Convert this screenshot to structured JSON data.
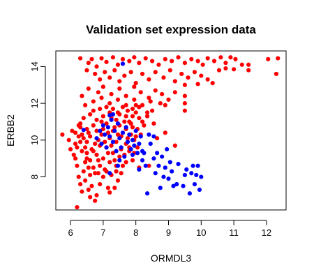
{
  "chart_data": {
    "type": "scatter",
    "title": "Validation set expression data",
    "xlabel": "ORMDL3",
    "ylabel": "ERBB2",
    "xlim": [
      5.55,
      12.6
    ],
    "ylim": [
      6.2,
      14.85
    ],
    "xticks": [
      6,
      7,
      8,
      9,
      10,
      11,
      12
    ],
    "yticks": [
      8,
      10,
      12,
      14
    ],
    "grid": false,
    "legend": "none",
    "series": [
      {
        "color": "#ff0000",
        "points": [
          [
            6.3,
            14.45
          ],
          [
            6.55,
            14.2
          ],
          [
            6.65,
            14.4
          ],
          [
            6.8,
            14.0
          ],
          [
            6.95,
            14.45
          ],
          [
            7.1,
            14.25
          ],
          [
            7.3,
            14.5
          ],
          [
            7.45,
            14.1
          ],
          [
            7.6,
            14.4
          ],
          [
            7.8,
            14.3
          ],
          [
            7.95,
            14.5
          ],
          [
            8.1,
            14.2
          ],
          [
            8.3,
            14.45
          ],
          [
            8.5,
            14.3
          ],
          [
            8.7,
            14.1
          ],
          [
            8.9,
            14.4
          ],
          [
            9.1,
            14.3
          ],
          [
            9.3,
            14.5
          ],
          [
            9.5,
            14.2
          ],
          [
            9.7,
            14.4
          ],
          [
            9.9,
            14.3
          ],
          [
            10.05,
            14.1
          ],
          [
            10.2,
            14.45
          ],
          [
            10.4,
            14.3
          ],
          [
            10.6,
            14.5
          ],
          [
            10.75,
            14.2
          ],
          [
            10.9,
            14.5
          ],
          [
            11.05,
            14.4
          ],
          [
            11.25,
            14.1
          ],
          [
            11.45,
            14.1
          ],
          [
            11.45,
            13.8
          ],
          [
            12.05,
            14.4
          ],
          [
            12.35,
            14.45
          ],
          [
            12.3,
            13.6
          ],
          [
            6.5,
            13.8
          ],
          [
            6.75,
            13.6
          ],
          [
            6.9,
            13.3
          ],
          [
            7.05,
            13.7
          ],
          [
            7.2,
            13.4
          ],
          [
            7.35,
            13.8
          ],
          [
            7.5,
            13.2
          ],
          [
            7.65,
            13.5
          ],
          [
            7.85,
            13.7
          ],
          [
            8.0,
            13.1
          ],
          [
            8.2,
            13.6
          ],
          [
            8.4,
            13.3
          ],
          [
            8.6,
            13.7
          ],
          [
            8.85,
            13.4
          ],
          [
            9.05,
            13.8
          ],
          [
            9.2,
            13.2
          ],
          [
            9.4,
            13.6
          ],
          [
            9.6,
            13.4
          ],
          [
            9.8,
            13.7
          ],
          [
            10.0,
            13.5
          ],
          [
            10.2,
            13.3
          ],
          [
            10.35,
            13.1
          ],
          [
            10.55,
            13.8
          ],
          [
            10.75,
            13.9
          ],
          [
            11.0,
            13.85
          ],
          [
            9.5,
            13.0
          ],
          [
            9.9,
            13.05
          ],
          [
            6.55,
            12.8
          ],
          [
            6.85,
            12.6
          ],
          [
            7.0,
            12.9
          ],
          [
            7.25,
            12.5
          ],
          [
            7.5,
            12.8
          ],
          [
            7.7,
            12.4
          ],
          [
            7.95,
            12.9
          ],
          [
            8.15,
            12.6
          ],
          [
            8.4,
            12.3
          ],
          [
            8.6,
            12.7
          ],
          [
            8.8,
            12.5
          ],
          [
            9.0,
            12.2
          ],
          [
            9.2,
            12.6
          ],
          [
            9.5,
            12.4
          ],
          [
            9.5,
            12.0
          ],
          [
            9.5,
            11.6
          ],
          [
            8.75,
            12.0
          ],
          [
            8.9,
            11.9
          ],
          [
            6.35,
            12.4
          ],
          [
            6.45,
            11.9
          ],
          [
            6.7,
            12.1
          ],
          [
            6.95,
            12.3
          ],
          [
            7.2,
            12.0
          ],
          [
            7.45,
            12.2
          ],
          [
            7.7,
            11.9
          ],
          [
            7.95,
            12.2
          ],
          [
            8.2,
            11.9
          ],
          [
            8.45,
            12.1
          ],
          [
            5.75,
            10.3
          ],
          [
            5.95,
            10.0
          ],
          [
            6.0,
            9.5
          ],
          [
            6.05,
            10.5
          ],
          [
            6.15,
            9.8
          ],
          [
            6.1,
            9.2
          ],
          [
            6.2,
            8.6
          ],
          [
            6.25,
            8.0
          ],
          [
            6.3,
            7.6
          ],
          [
            6.35,
            7.2
          ],
          [
            6.2,
            6.35
          ],
          [
            6.6,
            6.9
          ],
          [
            6.8,
            7.0
          ],
          [
            6.75,
            6.7
          ],
          [
            7.2,
            7.15
          ],
          [
            7.15,
            7.4
          ],
          [
            6.55,
            7.3
          ],
          [
            6.45,
            7.8
          ],
          [
            6.65,
            7.5
          ],
          [
            6.9,
            7.6
          ],
          [
            6.15,
            9.0
          ],
          [
            6.2,
            9.6
          ],
          [
            6.25,
            10.2
          ],
          [
            6.3,
            10.7
          ],
          [
            6.35,
            9.4
          ],
          [
            6.4,
            8.3
          ],
          [
            6.45,
            8.8
          ],
          [
            6.5,
            9.9
          ],
          [
            6.55,
            10.4
          ],
          [
            6.6,
            8.9
          ],
          [
            6.65,
            9.5
          ],
          [
            6.7,
            10.8
          ],
          [
            6.75,
            8.2
          ],
          [
            6.8,
            9.2
          ],
          [
            6.85,
            10.0
          ],
          [
            6.9,
            8.6
          ],
          [
            6.95,
            11.0
          ],
          [
            7.0,
            9.0
          ],
          [
            7.05,
            8.4
          ],
          [
            7.1,
            9.6
          ],
          [
            7.15,
            10.4
          ],
          [
            7.2,
            8.8
          ],
          [
            7.25,
            11.2
          ],
          [
            7.3,
            9.3
          ],
          [
            7.35,
            10.7
          ],
          [
            7.4,
            8.3
          ],
          [
            7.45,
            11.5
          ],
          [
            7.5,
            9.1
          ],
          [
            7.55,
            10.2
          ],
          [
            7.6,
            8.6
          ],
          [
            7.65,
            11.0
          ],
          [
            7.7,
            9.8
          ],
          [
            7.75,
            11.6
          ],
          [
            7.8,
            9.4
          ],
          [
            7.85,
            10.9
          ],
          [
            7.9,
            11.3
          ],
          [
            7.95,
            10.0
          ],
          [
            8.0,
            11.5
          ],
          [
            8.05,
            10.6
          ],
          [
            8.1,
            11.8
          ],
          [
            8.15,
            10.3
          ],
          [
            8.2,
            11.0
          ],
          [
            8.25,
            10.8
          ],
          [
            8.35,
            11.3
          ],
          [
            8.5,
            11.6
          ],
          [
            6.3,
            10.9
          ],
          [
            6.4,
            11.2
          ],
          [
            6.5,
            10.6
          ],
          [
            6.6,
            11.4
          ],
          [
            6.7,
            11.6
          ],
          [
            6.8,
            11.1
          ],
          [
            6.9,
            11.7
          ],
          [
            7.0,
            11.3
          ],
          [
            7.1,
            11.8
          ],
          [
            7.2,
            11.5
          ],
          [
            7.3,
            11.7
          ],
          [
            7.4,
            11.1
          ],
          [
            7.5,
            11.4
          ],
          [
            7.6,
            11.8
          ],
          [
            7.7,
            11.3
          ],
          [
            7.8,
            11.0
          ],
          [
            7.9,
            11.7
          ],
          [
            8.0,
            11.9
          ],
          [
            8.1,
            11.2
          ],
          [
            6.3,
            9.9
          ],
          [
            6.4,
            10.1
          ],
          [
            6.5,
            9.3
          ],
          [
            6.55,
            8.5
          ],
          [
            6.6,
            10.2
          ],
          [
            6.7,
            9.4
          ],
          [
            6.75,
            9.8
          ],
          [
            6.8,
            10.5
          ],
          [
            6.85,
            8.9
          ],
          [
            6.9,
            9.7
          ],
          [
            6.95,
            10.3
          ],
          [
            7.0,
            10.6
          ],
          [
            7.05,
            9.9
          ],
          [
            7.1,
            10.9
          ],
          [
            7.15,
            9.3
          ],
          [
            7.2,
            10.1
          ],
          [
            7.25,
            9.7
          ],
          [
            7.3,
            10.5
          ],
          [
            7.35,
            8.9
          ],
          [
            7.4,
            9.9
          ],
          [
            7.45,
            10.3
          ],
          [
            7.5,
            10.8
          ],
          [
            7.55,
            9.5
          ],
          [
            7.6,
            10.4
          ],
          [
            7.65,
            9.2
          ],
          [
            7.7,
            10.6
          ],
          [
            7.75,
            10.1
          ],
          [
            7.8,
            9.6
          ],
          [
            7.85,
            10.3
          ],
          [
            7.9,
            10.7
          ],
          [
            7.95,
            9.3
          ],
          [
            8.0,
            10.2
          ],
          [
            6.6,
            8.1
          ],
          [
            6.7,
            8.5
          ],
          [
            6.85,
            8.2
          ],
          [
            7.0,
            8.0
          ],
          [
            7.1,
            8.3
          ],
          [
            7.25,
            8.1
          ],
          [
            7.4,
            8.6
          ],
          [
            7.55,
            8.2
          ],
          [
            6.5,
            9.0
          ],
          [
            6.45,
            9.6
          ],
          [
            6.35,
            10.3
          ],
          [
            6.25,
            10.8
          ],
          [
            6.15,
            10.4
          ],
          [
            7.7,
            8.8
          ],
          [
            7.45,
            7.8
          ],
          [
            7.35,
            7.4
          ],
          [
            7.9,
            8.9
          ],
          [
            8.05,
            9.6
          ],
          [
            8.1,
            8.5
          ],
          [
            8.4,
            8.6
          ],
          [
            9.2,
            9.7
          ],
          [
            8.9,
            10.4
          ],
          [
            8.65,
            10.1
          ],
          [
            8.35,
            11.5
          ],
          [
            8.55,
            10.9
          ]
        ]
      },
      {
        "color": "#0000ff",
        "points": [
          [
            7.6,
            14.15
          ],
          [
            6.4,
            10.55
          ],
          [
            6.8,
            10.1
          ],
          [
            6.9,
            10.5
          ],
          [
            6.95,
            9.8
          ],
          [
            7.0,
            10.8
          ],
          [
            7.05,
            10.3
          ],
          [
            7.1,
            9.6
          ],
          [
            7.15,
            10.7
          ],
          [
            7.2,
            10.2
          ],
          [
            7.25,
            11.1
          ],
          [
            7.3,
            9.9
          ],
          [
            7.35,
            10.5
          ],
          [
            7.4,
            9.4
          ],
          [
            7.45,
            10.9
          ],
          [
            7.5,
            10.1
          ],
          [
            7.55,
            9.6
          ],
          [
            7.6,
            10.4
          ],
          [
            7.65,
            9.1
          ],
          [
            7.7,
            10.7
          ],
          [
            7.75,
            9.9
          ],
          [
            7.8,
            10.3
          ],
          [
            7.85,
            9.5
          ],
          [
            7.9,
            10.0
          ],
          [
            7.95,
            9.7
          ],
          [
            8.0,
            10.5
          ],
          [
            8.05,
            9.3
          ],
          [
            8.1,
            9.8
          ],
          [
            8.15,
            10.2
          ],
          [
            8.2,
            9.4
          ],
          [
            7.3,
            11.4
          ],
          [
            7.2,
            11.35
          ],
          [
            7.2,
            8.2
          ],
          [
            7.5,
            8.9
          ],
          [
            7.9,
            9.2
          ],
          [
            8.1,
            8.4
          ],
          [
            8.25,
            9.3
          ],
          [
            8.3,
            8.6
          ],
          [
            8.35,
            7.1
          ],
          [
            8.45,
            9.8
          ],
          [
            8.55,
            9.0
          ],
          [
            8.6,
            8.2
          ],
          [
            8.7,
            8.6
          ],
          [
            8.75,
            7.4
          ],
          [
            8.8,
            9.1
          ],
          [
            8.85,
            8.0
          ],
          [
            8.9,
            8.5
          ],
          [
            8.95,
            9.5
          ],
          [
            9.0,
            7.9
          ],
          [
            9.05,
            8.8
          ],
          [
            9.1,
            8.3
          ],
          [
            9.15,
            7.5
          ],
          [
            9.25,
            7.6
          ],
          [
            9.3,
            8.7
          ],
          [
            9.45,
            7.5
          ],
          [
            9.5,
            8.1
          ],
          [
            9.55,
            8.4
          ],
          [
            9.65,
            7.1
          ],
          [
            9.7,
            8.2
          ],
          [
            9.75,
            8.6
          ],
          [
            9.8,
            7.6
          ],
          [
            9.85,
            8.1
          ],
          [
            9.9,
            8.6
          ],
          [
            9.95,
            7.3
          ],
          [
            10.0,
            8.0
          ],
          [
            8.4,
            10.3
          ],
          [
            8.55,
            10.2
          ],
          [
            8.2,
            8.9
          ],
          [
            7.45,
            8.6
          ],
          [
            8.65,
            9.3
          ]
        ]
      }
    ]
  }
}
